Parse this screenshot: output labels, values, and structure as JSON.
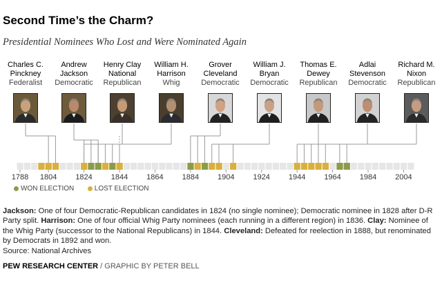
{
  "title": "Second Time’s the Charm?",
  "subtitle": "Presidential Nominees Who Lost and Were Nominated Again",
  "colors": {
    "won": "#8c9b4a",
    "lost": "#d9b03b",
    "track": "#e6e6e6",
    "connector": "#999999"
  },
  "candidates": [
    {
      "name_1": "Charles C.",
      "name_2": "Pinckney",
      "party": "Federalist",
      "elections": [
        1804,
        1808
      ]
    },
    {
      "name_1": "Andrew",
      "name_2": "Jackson",
      "party": "Democratic",
      "elections": [
        1824,
        1828,
        1832
      ]
    },
    {
      "name_1": "Henry Clay",
      "name_2": "National",
      "party": "Republican",
      "elections": [
        1824,
        1832,
        1844
      ]
    },
    {
      "name_1": "William H.",
      "name_2": "Harrison",
      "party": "Whig",
      "elections": [
        1836,
        1840
      ]
    },
    {
      "name_1": "Grover",
      "name_2": "Cleveland",
      "party": "Democratic",
      "elections": [
        1884,
        1888,
        1892
      ]
    },
    {
      "name_1": "William J.",
      "name_2": "Bryan",
      "party": "Democratic",
      "elections": [
        1896,
        1900,
        1908
      ]
    },
    {
      "name_1": "Thomas E.",
      "name_2": "Dewey",
      "party": "Republican",
      "elections": [
        1944,
        1948
      ]
    },
    {
      "name_1": "Adlai",
      "name_2": "Stevenson",
      "party": "Democratic",
      "elections": [
        1952,
        1956
      ]
    },
    {
      "name_1": "Richard M.",
      "name_2": "Nixon",
      "party": "Republican",
      "elections": [
        1960,
        1968,
        1972
      ]
    }
  ],
  "chart_data": {
    "type": "timeline",
    "title": "Second Time’s the Charm?",
    "subtitle": "Presidential Nominees Who Lost and Were Nominated Again",
    "xlim": [
      1788,
      2012
    ],
    "ticks": [
      1788,
      1804,
      1824,
      1844,
      1864,
      1884,
      1904,
      1924,
      1944,
      1964,
      1984,
      2004
    ],
    "elections": [
      {
        "year": 1800,
        "result": "lost"
      },
      {
        "year": 1804,
        "result": "lost"
      },
      {
        "year": 1808,
        "result": "lost"
      },
      {
        "year": 1824,
        "result": "lost"
      },
      {
        "year": 1828,
        "result": "won"
      },
      {
        "year": 1832,
        "result": "won"
      },
      {
        "year": 1836,
        "result": "lost"
      },
      {
        "year": 1840,
        "result": "won"
      },
      {
        "year": 1844,
        "result": "lost"
      },
      {
        "year": 1884,
        "result": "won"
      },
      {
        "year": 1888,
        "result": "lost"
      },
      {
        "year": 1892,
        "result": "won"
      },
      {
        "year": 1896,
        "result": "lost"
      },
      {
        "year": 1900,
        "result": "lost"
      },
      {
        "year": 1908,
        "result": "lost"
      },
      {
        "year": 1944,
        "result": "lost"
      },
      {
        "year": 1948,
        "result": "lost"
      },
      {
        "year": 1952,
        "result": "lost"
      },
      {
        "year": 1956,
        "result": "lost"
      },
      {
        "year": 1960,
        "result": "lost"
      },
      {
        "year": 1968,
        "result": "won"
      },
      {
        "year": 1972,
        "result": "won"
      }
    ],
    "legend": [
      {
        "label": "WON ELECTION",
        "result": "won"
      },
      {
        "label": "LOST ELECTION",
        "result": "lost"
      }
    ],
    "legend_position": "bottom-left"
  },
  "note": {
    "jackson_label": "Jackson:",
    "jackson_text": " One of four Democratic-Republican candidates in 1824 (no single nominee); Democratic nominee in 1828 after D-R Party split. ",
    "harrison_label": "Harrison:",
    "harrison_text": " One of four official Whig Party nominees (each running in a different region) in 1836. ",
    "clay_label": "Clay:",
    "clay_text": " Nominee of the Whig Party (successor to the National Republicans) in 1844. ",
    "cleveland_label": "Cleveland:",
    "cleveland_text": " Defeated for reelection in 1888, but renominated by Democrats in 1892 and won."
  },
  "source": "Source: National Archives",
  "credit": {
    "org": "PEW RESEARCH CENTER",
    "by": " / GRAPHIC BY PETER BELL"
  }
}
